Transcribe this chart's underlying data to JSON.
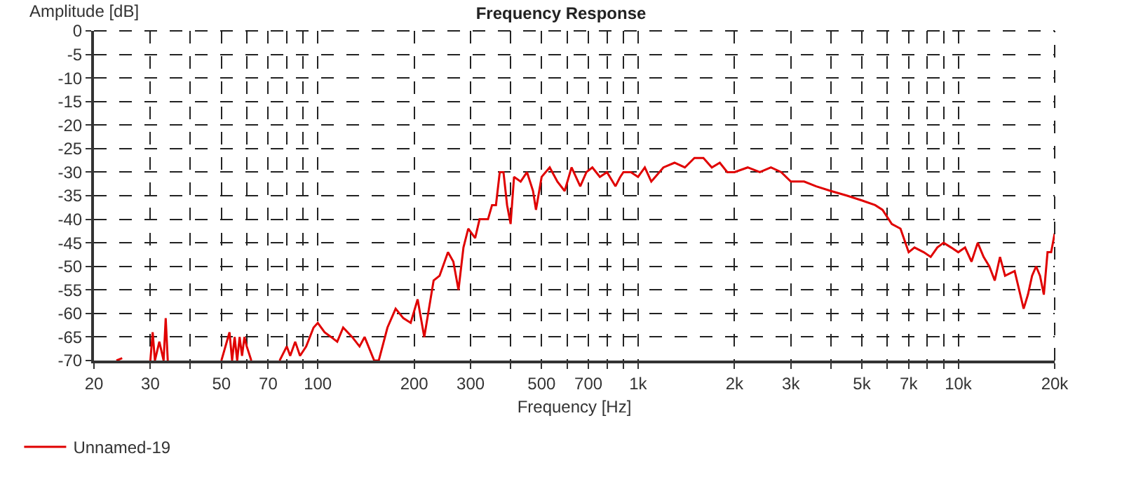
{
  "chart_data": {
    "type": "line",
    "title": "Frequency Response",
    "xlabel": "Frequency [Hz]",
    "ylabel": "Amplitude [dB]",
    "log": "x",
    "grid": true,
    "legend": "bottom left",
    "line_style": "solid",
    "xlim": [
      20,
      20000
    ],
    "ylim": [
      -70,
      0
    ],
    "xticks": [
      20,
      30,
      {
        "value": 40,
        "label": null
      },
      50,
      {
        "value": 60,
        "label": null
      },
      70,
      {
        "value": 80,
        "label": null
      },
      {
        "value": 90,
        "label": null
      },
      100,
      200,
      300,
      {
        "value": 400,
        "label": null
      },
      500,
      {
        "value": 600,
        "label": null
      },
      700,
      {
        "value": 800,
        "label": null
      },
      {
        "value": 900,
        "label": null
      },
      {
        "value": 1000,
        "label": "1k"
      },
      {
        "value": 2000,
        "label": "2k"
      },
      {
        "value": 3000,
        "label": "3k"
      },
      {
        "value": 4000,
        "label": null
      },
      {
        "value": 5000,
        "label": "5k"
      },
      {
        "value": 6000,
        "label": null
      },
      {
        "value": 7000,
        "label": "7k"
      },
      {
        "value": 8000,
        "label": null
      },
      {
        "value": 9000,
        "label": null
      },
      {
        "value": 10000,
        "label": "10k"
      },
      {
        "value": 20000,
        "label": "20k"
      }
    ],
    "yticks": [
      0,
      -5,
      -10,
      -15,
      -20,
      -25,
      -30,
      -35,
      -40,
      -45,
      -50,
      -55,
      -60,
      -65,
      -70
    ],
    "x": [
      23.5,
      24.5,
      27,
      30,
      30.5,
      31,
      32,
      33,
      33.5,
      34,
      40,
      50,
      53,
      54,
      55,
      56,
      57,
      58,
      59,
      60,
      62,
      70,
      76,
      80,
      82,
      85,
      88,
      92,
      97,
      100,
      105,
      110,
      115,
      120,
      128,
      135,
      140,
      150,
      155,
      165,
      175,
      185,
      195,
      205,
      215,
      230,
      240,
      255,
      265,
      275,
      285,
      295,
      310,
      320,
      340,
      350,
      360,
      370,
      380,
      390,
      400,
      410,
      430,
      450,
      470,
      480,
      500,
      530,
      560,
      590,
      620,
      660,
      690,
      720,
      760,
      800,
      850,
      880,
      900,
      950,
      1000,
      1050,
      1100,
      1200,
      1300,
      1400,
      1500,
      1600,
      1700,
      1800,
      1900,
      2000,
      2200,
      2400,
      2600,
      2800,
      3000,
      3300,
      3600,
      4000,
      4500,
      5000,
      5500,
      5800,
      6200,
      6600,
      7000,
      7300,
      7800,
      8200,
      8600,
      9000,
      9500,
      10000,
      10500,
      11000,
      11500,
      12000,
      12500,
      13000,
      13500,
      14000,
      15000,
      16000,
      16500,
      17000,
      17500,
      18000,
      18500,
      19000,
      19500,
      20000
    ],
    "series": [
      {
        "name": "Unnamed-19",
        "color": "#e00000",
        "values": [
          -70,
          -69.5,
          null,
          -70,
          -64,
          -70,
          -66,
          -70,
          -61,
          -70,
          null,
          -70,
          -64,
          -70,
          -65,
          -70,
          -65,
          -69,
          -65,
          -67,
          -70,
          null,
          -70,
          -67,
          -69,
          -66,
          -69,
          -67,
          -63,
          -62,
          -64,
          -65,
          -66,
          -63,
          -65,
          -67,
          -65,
          -70,
          -70,
          -63,
          -59,
          -61,
          -62,
          -57,
          -65,
          -53,
          -52,
          -47,
          -49,
          -55,
          -46,
          -42,
          -44,
          -40,
          -40,
          -37,
          -37,
          -30,
          -30,
          -37,
          -41,
          -31,
          -32,
          -30,
          -34,
          -38,
          -31,
          -29,
          -32,
          -34,
          -29,
          -33,
          -30,
          -29,
          -31,
          -30,
          -33,
          -31,
          -30,
          -30,
          -31,
          -29,
          -32,
          -29,
          -28,
          -29,
          -27,
          -27,
          -29,
          -28,
          -30,
          -30,
          -29,
          -30,
          -29,
          -30,
          -32,
          -32,
          -33,
          -34,
          -35,
          -36,
          -37,
          -38,
          -41,
          -42,
          -47,
          -46,
          -47,
          -48,
          -46,
          -45,
          -46,
          -47,
          -46,
          -49,
          -45,
          -48,
          -50,
          -53,
          -48,
          -52,
          -51,
          -59,
          -56,
          -52,
          -50,
          -52,
          -56,
          -47,
          -47,
          -43
        ]
      }
    ]
  }
}
